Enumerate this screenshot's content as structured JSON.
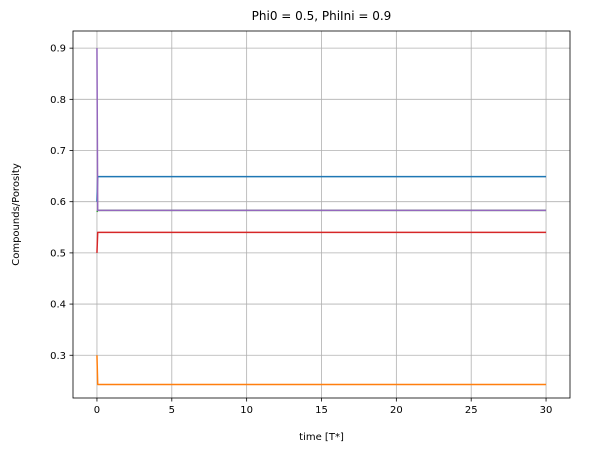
{
  "chart_data": {
    "type": "line",
    "title": "Phi0 = 0.5, PhiIni = 0.9",
    "xlabel": "time [T*]",
    "ylabel": "Compounds/Porosity",
    "xlim": [
      -1.6,
      31.6
    ],
    "ylim": [
      0.2165,
      0.9335
    ],
    "xticks": [
      0,
      5,
      10,
      15,
      20,
      25,
      30
    ],
    "yticks": [
      0.3,
      0.4,
      0.5,
      0.6,
      0.7,
      0.8,
      0.9
    ],
    "xtick_labels": [
      "0",
      "5",
      "10",
      "15",
      "20",
      "25",
      "30"
    ],
    "ytick_labels": [
      "0.3",
      "0.4",
      "0.5",
      "0.6",
      "0.7",
      "0.8",
      "0.9"
    ],
    "grid": true,
    "series": [
      {
        "color": "#1f77b4",
        "x": [
          0,
          0.05,
          30
        ],
        "y": [
          0.6,
          0.649,
          0.649
        ]
      },
      {
        "color": "#ff7f0e",
        "x": [
          0,
          0.05,
          30
        ],
        "y": [
          0.3,
          0.243,
          0.243
        ]
      },
      {
        "color": "#2ca02c",
        "x": [
          0,
          0.05,
          30
        ],
        "y": [
          0.58,
          0.583,
          0.583
        ]
      },
      {
        "color": "#d62728",
        "x": [
          0,
          0.05,
          30
        ],
        "y": [
          0.5,
          0.54,
          0.54
        ]
      },
      {
        "color": "#9467bd",
        "x": [
          0,
          0.05,
          30
        ],
        "y": [
          0.9,
          0.583,
          0.583
        ]
      }
    ]
  }
}
